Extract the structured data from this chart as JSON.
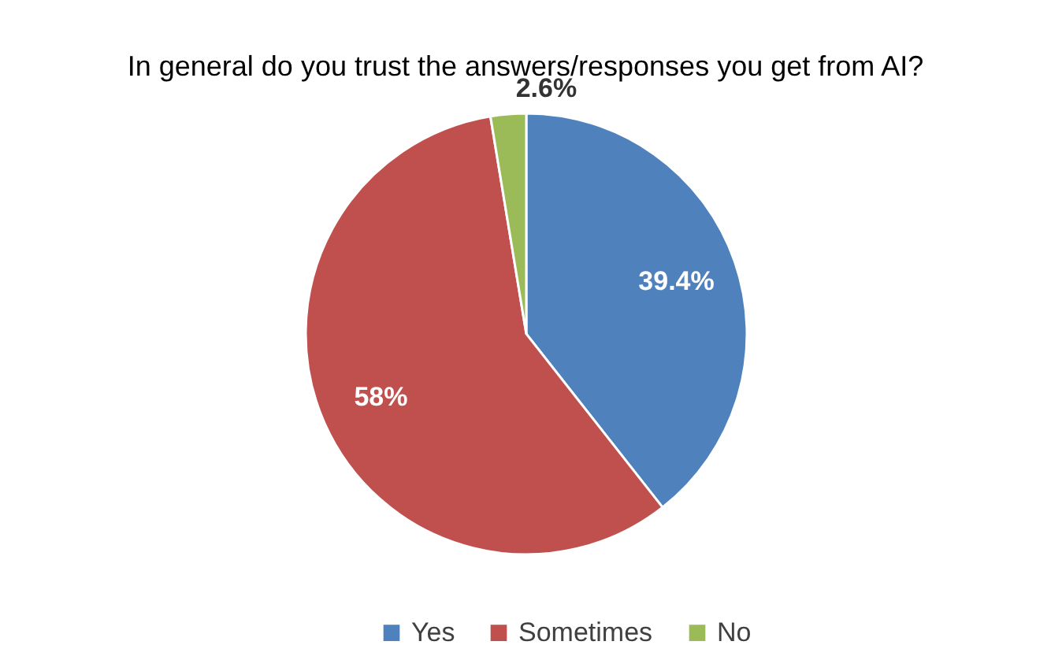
{
  "chart_data": {
    "type": "pie",
    "title": "In general do you trust the answers/responses you get from AI?",
    "categories": [
      "Yes",
      "Sometimes",
      "No"
    ],
    "values": [
      39.4,
      58,
      2.6
    ],
    "colors": [
      "#4f81bd",
      "#c0504d",
      "#9bbb59"
    ],
    "value_labels": [
      "39.4%",
      "58%",
      "2.6%"
    ],
    "legend": "bottom"
  }
}
